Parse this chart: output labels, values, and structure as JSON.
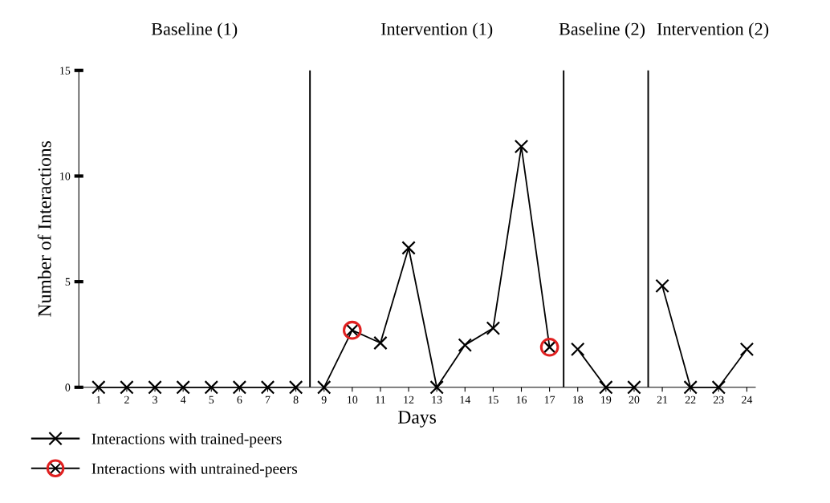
{
  "chart_data": {
    "type": "line",
    "xlabel": "Days",
    "ylabel": "Number of Interactions",
    "x": [
      1,
      2,
      3,
      4,
      5,
      6,
      7,
      8,
      9,
      10,
      11,
      12,
      13,
      14,
      15,
      16,
      17,
      18,
      19,
      20,
      21,
      22,
      23,
      24
    ],
    "series": [
      {
        "name": "Interactions with trained-peers",
        "color": "#000000",
        "marker": "cross",
        "values": [
          0,
          0,
          0,
          0,
          0,
          0,
          0,
          0,
          0,
          2.7,
          2.1,
          6.6,
          0,
          2.0,
          2.8,
          11.4,
          1.9,
          1.8,
          0,
          0,
          4.8,
          0,
          0,
          1.8
        ]
      },
      {
        "name": "Interactions with untrained-peers",
        "type": "scatter",
        "color": "#e02020",
        "marker": "circle",
        "values": [
          null,
          null,
          null,
          null,
          null,
          null,
          null,
          null,
          null,
          2.7,
          null,
          null,
          null,
          null,
          null,
          null,
          1.9,
          null,
          null,
          null,
          null,
          null,
          null,
          null
        ]
      }
    ],
    "xlim": [
      0.3,
      24.3
    ],
    "xticks": [
      1,
      2,
      3,
      4,
      5,
      6,
      7,
      8,
      9,
      10,
      11,
      12,
      13,
      14,
      15,
      16,
      17,
      18,
      19,
      20,
      21,
      22,
      23,
      24
    ],
    "ylim": [
      0,
      15
    ],
    "yticks": [
      0,
      5,
      10,
      15
    ],
    "ref_lines": [
      {
        "axis": "x",
        "value": 8.5,
        "color": "#000000"
      },
      {
        "axis": "x",
        "value": 17.5,
        "color": "#000000"
      },
      {
        "axis": "x",
        "value": 20.5,
        "color": "#000000"
      }
    ],
    "annotations": [
      "Baseline (1)",
      "Intervention (1)",
      "Baseline (2)",
      "Intervention (2)"
    ],
    "legend": "bottom left",
    "grid": false,
    "line_style": "solid"
  }
}
